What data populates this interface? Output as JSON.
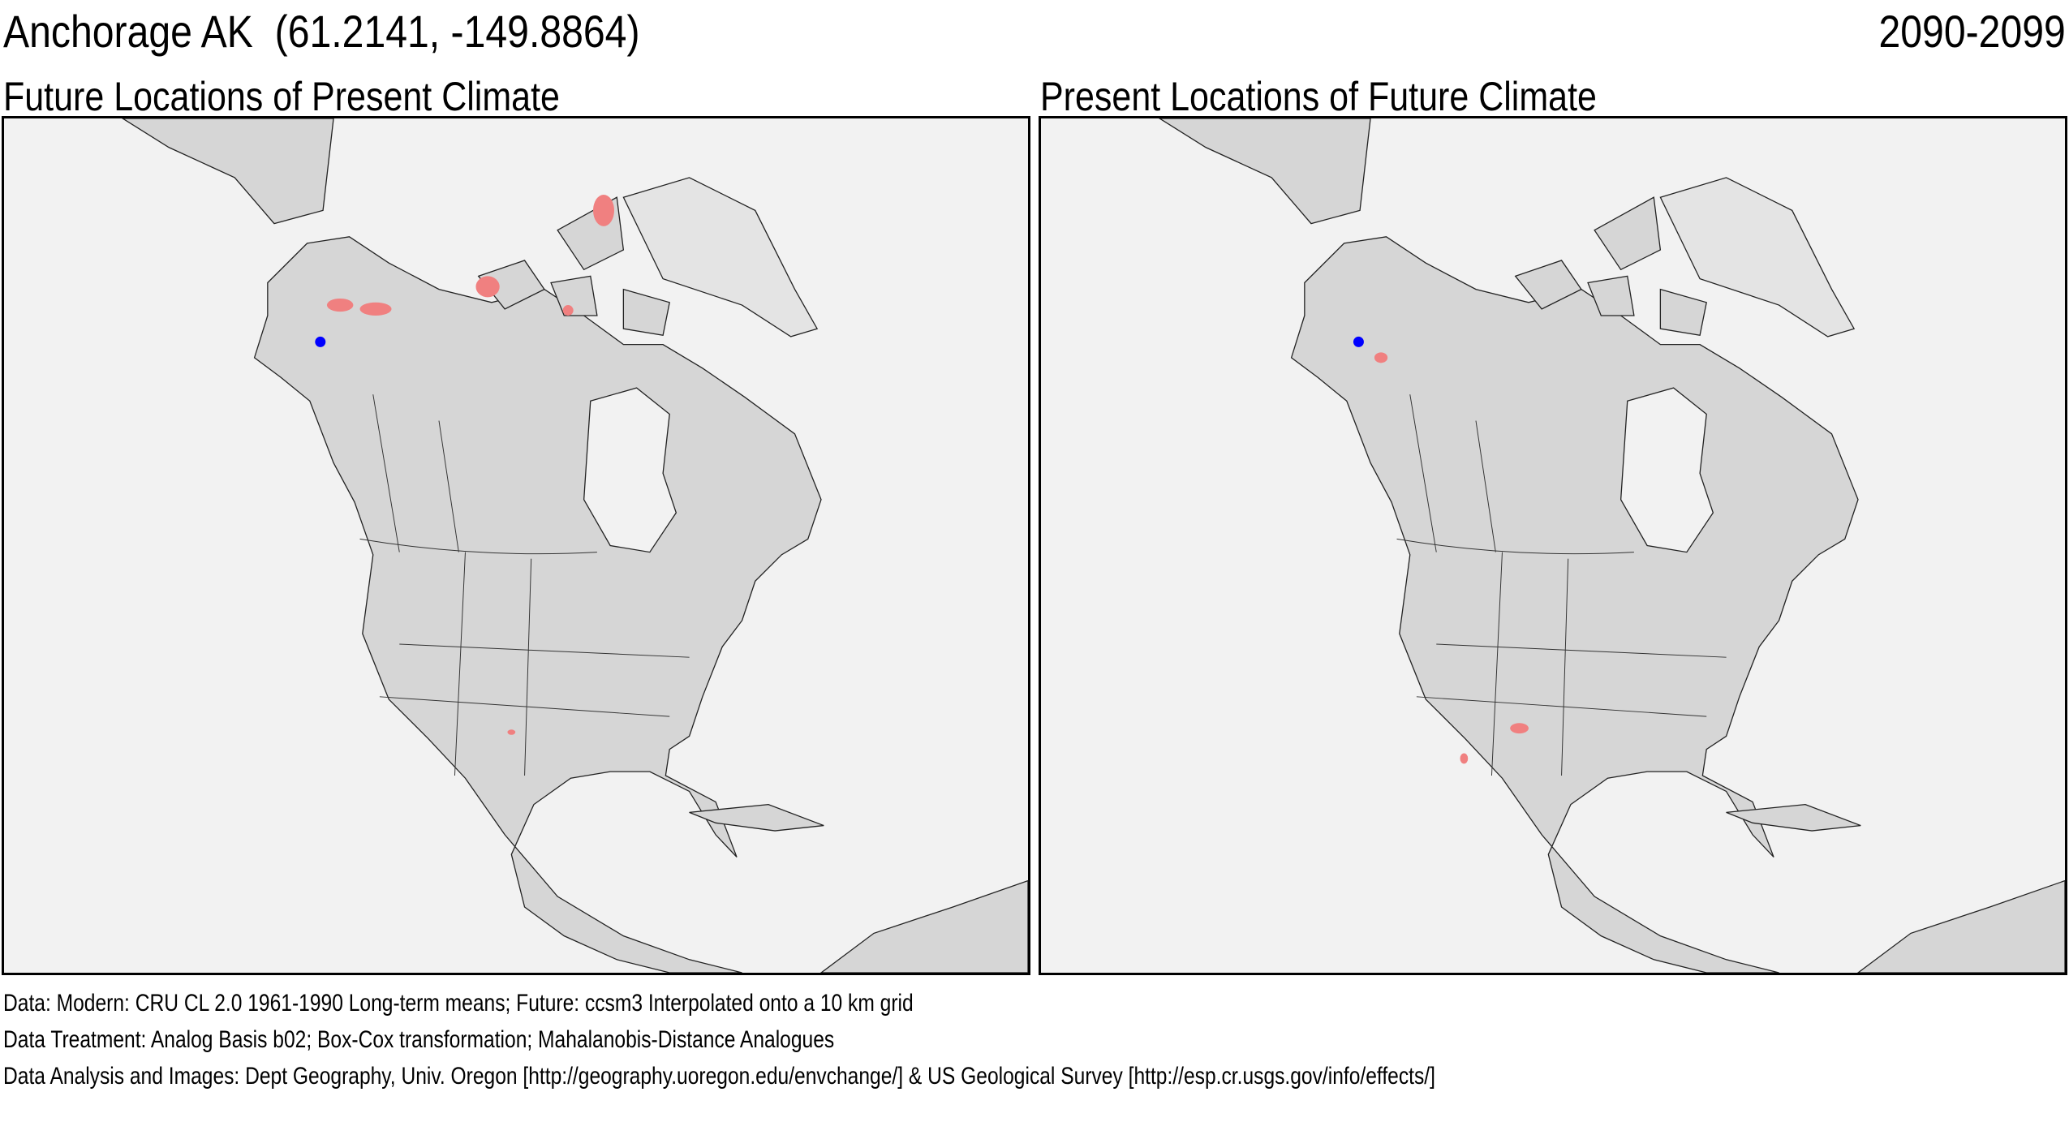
{
  "header": {
    "location": "Anchorage AK  (61.2141, -149.8864)",
    "period": "2090-2099"
  },
  "maps": [
    {
      "title": "Future Locations of Present Climate",
      "marker_color": "#0000ff",
      "analog_color": "#f08080"
    },
    {
      "title": "Present Locations of Future Climate",
      "marker_color": "#0000ff",
      "analog_color": "#f08080"
    }
  ],
  "footer": {
    "data": "Data:  Modern: CRU CL 2.0 1961-1990 Long-term means; Future: ccsm3 Interpolated onto a 10 km grid",
    "treatment": "Data Treatment:  Analog Basis b02; Box-Cox transformation; Mahalanobis-Distance Analogues",
    "credits": "Data Analysis and Images:  Dept Geography, Univ. Oregon [http://geography.uoregon.edu/envchange/] & US Geological Survey [http://esp.cr.usgs.gov/info/effects/]"
  }
}
